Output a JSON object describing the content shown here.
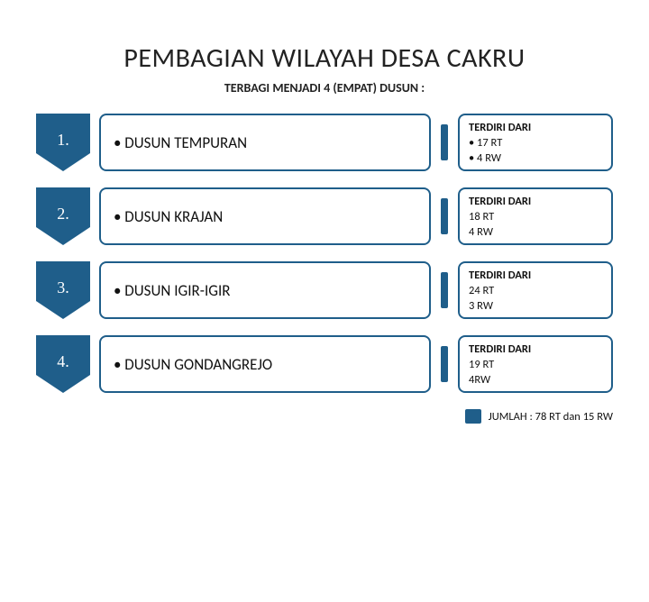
{
  "title": "PEMBAGIAN WILAYAH DESA CAKRU",
  "subtitle": "TERBAGI MENJADI  4 (EMPAT) DUSUN :",
  "colors": {
    "block": "#1f5e8a",
    "border": "#1f5e8a",
    "decor1": "#2aa6c9",
    "decor2": "#cbe7ef",
    "decor3": "#2aa6c9"
  },
  "rows": [
    {
      "num": "1.",
      "name": "• DUSUN TEMPURAN",
      "detail_header": "TERDIRI DARI",
      "detail_line1": "• 17 RT",
      "detail_line2": "• 4 RW"
    },
    {
      "num": "2.",
      "name": "• DUSUN KRAJAN",
      "detail_header": "TERDIRI DARI",
      "detail_line1": "18 RT",
      "detail_line2": "4 RW"
    },
    {
      "num": "3.",
      "name": "• DUSUN IGIR-IGIR",
      "detail_header": "TERDIRI DARI",
      "detail_line1": "24 RT",
      "detail_line2": "3 RW"
    },
    {
      "num": "4.",
      "name": "• DUSUN GONDANGREJO",
      "detail_header": "TERDIRI DARI",
      "detail_line1": "19 RT",
      "detail_line2": "4RW"
    }
  ],
  "total": "JUMLAH : 78 RT dan 15 RW"
}
